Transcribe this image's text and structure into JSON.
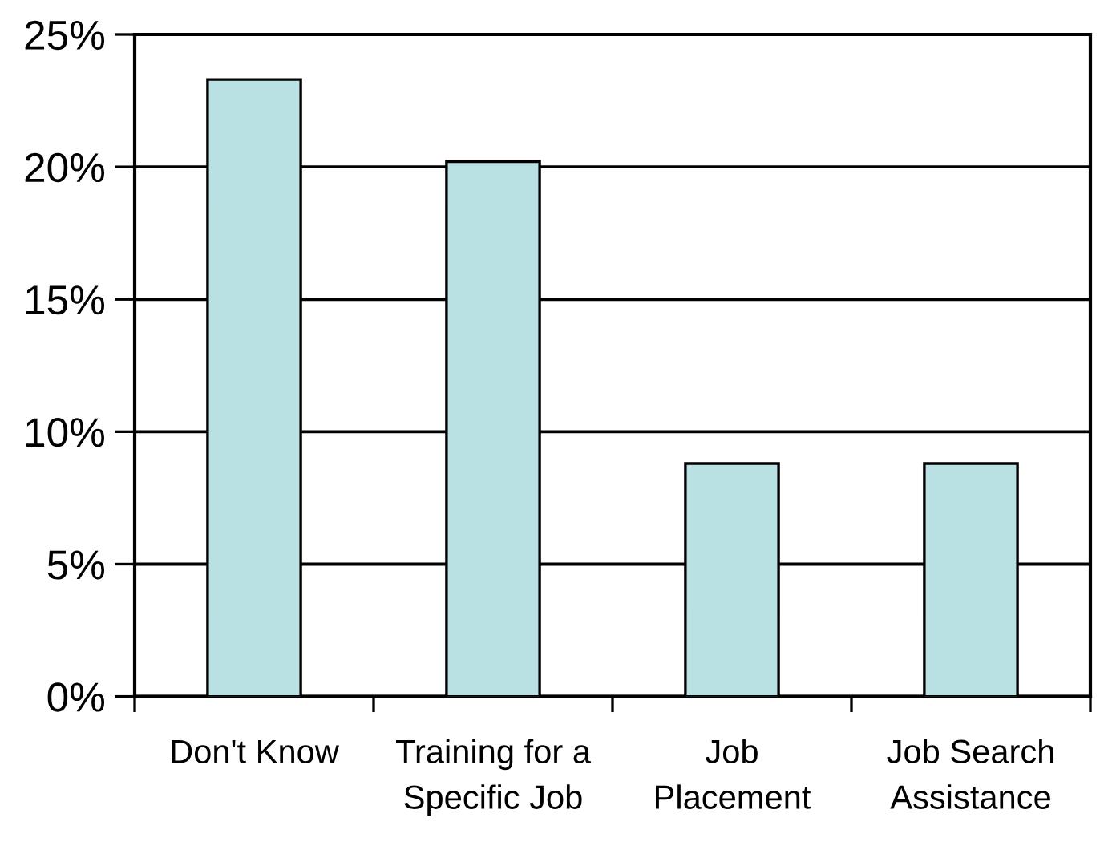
{
  "chart_data": {
    "type": "bar",
    "categories": [
      "Don't Know",
      "Training for a\nSpecific Job",
      "Job\nPlacement",
      "Job Search\nAssistance"
    ],
    "values": [
      23.3,
      20.2,
      8.8,
      8.8
    ],
    "color": "#b9e0e3",
    "ylim": [
      0,
      25
    ],
    "yticks": [
      {
        "value": 0,
        "label": "0%"
      },
      {
        "value": 5,
        "label": "5%"
      },
      {
        "value": 10,
        "label": "10%"
      },
      {
        "value": 15,
        "label": "15%"
      },
      {
        "value": 20,
        "label": "20%"
      },
      {
        "value": 25,
        "label": "25%"
      }
    ],
    "grid": "y"
  }
}
